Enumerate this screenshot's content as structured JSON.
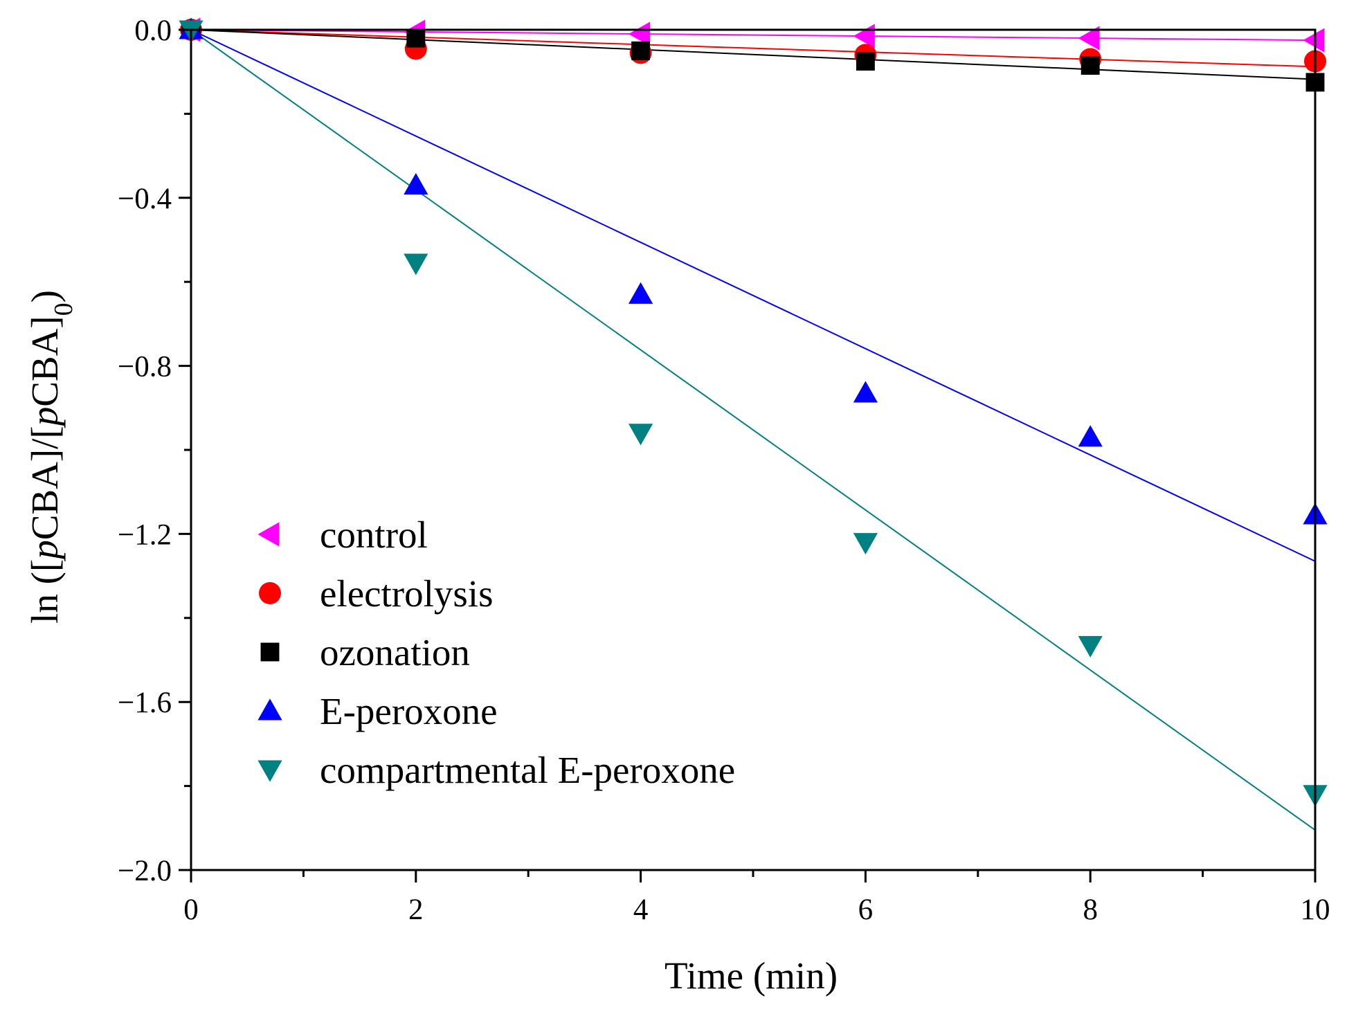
{
  "chart_data": {
    "type": "scatter",
    "title": "",
    "xlabel": "Time (min)",
    "ylabel_parts": [
      "ln ([",
      "p",
      "CBA]/[",
      "p",
      "CBA]",
      "0",
      ")"
    ],
    "xlim": [
      0,
      10
    ],
    "ylim": [
      -2.0,
      0.0
    ],
    "xticks": [
      0,
      2,
      4,
      6,
      8,
      10
    ],
    "xtick_labels": [
      "0",
      "2",
      "4",
      "6",
      "8",
      "10"
    ],
    "yticks": [
      0.0,
      -0.4,
      -0.8,
      -1.2,
      -1.6,
      -2.0
    ],
    "ytick_labels": [
      "0.0",
      "−0.4",
      "−0.8",
      "−1.2",
      "−1.6",
      "−2.0"
    ],
    "grid": false,
    "legend_position": "lower-left",
    "x": [
      0,
      2,
      4,
      6,
      8,
      10
    ],
    "series": [
      {
        "name": "control",
        "marker": "triangle-left",
        "color": "#ff00ff",
        "values": [
          0,
          -0.005,
          -0.01,
          -0.015,
          -0.02,
          -0.025
        ],
        "fit_slope": -0.0025
      },
      {
        "name": "electrolysis",
        "marker": "circle",
        "color": "#ff0000",
        "values": [
          0,
          -0.045,
          -0.055,
          -0.06,
          -0.07,
          -0.075
        ],
        "fit_slope": -0.0088
      },
      {
        "name": "ozonation",
        "marker": "square",
        "color": "#000000",
        "values": [
          0,
          -0.02,
          -0.05,
          -0.075,
          -0.085,
          -0.125
        ],
        "fit_slope": -0.0118
      },
      {
        "name": "E-peroxone",
        "marker": "triangle-up",
        "color": "#0000ff",
        "values": [
          0,
          -0.37,
          -0.63,
          -0.865,
          -0.97,
          -1.155
        ],
        "fit_slope": -0.1265
      },
      {
        "name": "compartmental E-peroxone",
        "marker": "triangle-down",
        "color": "#008080",
        "values": [
          0,
          -0.555,
          -0.96,
          -1.22,
          -1.465,
          -1.82
        ],
        "fit_slope": -0.1905
      }
    ]
  }
}
